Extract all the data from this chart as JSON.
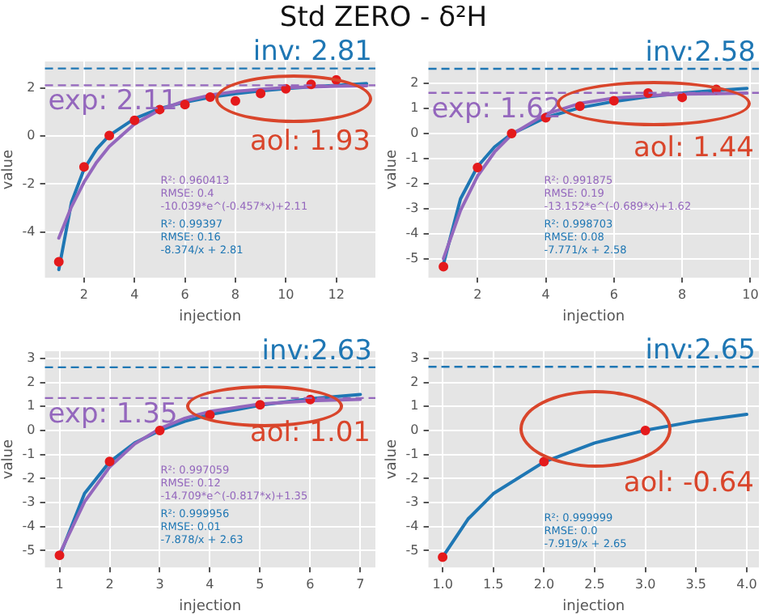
{
  "chart_data": [
    {
      "type": "scatter",
      "title": "Std ZERO - δ²H",
      "xlabel": "injection",
      "ylabel": "value",
      "xlim": [
        0.45,
        13.55
      ],
      "ylim": [
        -5.9,
        3.1
      ],
      "xticks": [
        2,
        4,
        6,
        8,
        10,
        12
      ],
      "yticks": [
        -4,
        -2,
        0,
        2
      ],
      "grid": true,
      "series": [
        {
          "type": "scatter",
          "color": "#e41a1c",
          "x": [
            1,
            2,
            3,
            4,
            5,
            6,
            7,
            8,
            9,
            10,
            11,
            12
          ],
          "values": [
            -5.24,
            -1.29,
            0.02,
            0.65,
            1.1,
            1.31,
            1.62,
            1.46,
            1.77,
            1.96,
            2.15,
            2.33
          ]
        },
        {
          "type": "line",
          "color": "#9467bd",
          "x": [
            1,
            1.5,
            2,
            2.5,
            3,
            4,
            5,
            6,
            7,
            8,
            9,
            10,
            11,
            12,
            13.2
          ],
          "values": [
            -4.25,
            -2.95,
            -1.92,
            -1.09,
            -0.44,
            0.5,
            1.09,
            1.46,
            1.7,
            1.85,
            1.95,
            2.01,
            2.04,
            2.07,
            2.09
          ]
        },
        {
          "type": "line",
          "color": "#1f77b4",
          "x": [
            1,
            1.5,
            2,
            2.5,
            3,
            4,
            5,
            6,
            7,
            8,
            9,
            10,
            11,
            12,
            13.2
          ],
          "values": [
            -5.56,
            -2.77,
            -1.38,
            -0.54,
            0.02,
            0.72,
            1.14,
            1.41,
            1.61,
            1.76,
            1.88,
            1.97,
            2.05,
            2.11,
            2.18
          ]
        }
      ],
      "ref_lines": [
        {
          "axis": "y",
          "value": 2.81,
          "label": "inv: 2.81",
          "color": "#1f77b4",
          "line_style": "dashed"
        },
        {
          "axis": "y",
          "value": 2.11,
          "label": "exp: 2.11",
          "color": "#9467bd",
          "line_style": "dashed"
        }
      ],
      "annotations": [
        "R²: 0.960413\nRMSE: 0.4\n-10.039*e^(-0.457*x)+2.11",
        "R²: 0.99397\nRMSE: 0.16\n-8.374/x + 2.81",
        "aol: 1.93"
      ]
    },
    {
      "type": "scatter",
      "xlabel": "injection",
      "ylabel": "value",
      "xlim": [
        0.56,
        10.25
      ],
      "ylim": [
        -5.74,
        2.87
      ],
      "xticks": [
        2,
        4,
        6,
        8,
        10
      ],
      "yticks": [
        -5,
        -4,
        -3,
        -2,
        -1,
        0,
        1,
        2
      ],
      "grid": true,
      "series": [
        {
          "type": "scatter",
          "color": "#e41a1c",
          "x": [
            1,
            2,
            3,
            4,
            5,
            6,
            7,
            8,
            9
          ],
          "values": [
            -5.3,
            -1.35,
            0.0,
            0.63,
            1.09,
            1.31,
            1.61,
            1.44,
            1.76
          ]
        },
        {
          "type": "line",
          "color": "#9467bd",
          "x": [
            1,
            1.5,
            2,
            2.5,
            3,
            4,
            5,
            6,
            7,
            8,
            9,
            9.9
          ],
          "values": [
            -4.98,
            -3.06,
            -1.69,
            -0.73,
            -0.04,
            0.78,
            1.2,
            1.41,
            1.51,
            1.57,
            1.59,
            1.61
          ]
        },
        {
          "type": "line",
          "color": "#1f77b4",
          "x": [
            1,
            1.5,
            2,
            2.5,
            3,
            4,
            5,
            6,
            7,
            8,
            9,
            9.9
          ],
          "values": [
            -5.19,
            -2.6,
            -1.31,
            -0.53,
            -0.01,
            0.64,
            1.03,
            1.28,
            1.47,
            1.61,
            1.72,
            1.8
          ]
        }
      ],
      "ref_lines": [
        {
          "axis": "y",
          "value": 2.58,
          "label": "inv:2.58",
          "color": "#1f77b4",
          "line_style": "dashed"
        },
        {
          "axis": "y",
          "value": 1.62,
          "label": "exp: 1.62",
          "color": "#9467bd",
          "line_style": "dashed"
        }
      ],
      "annotations": [
        "R²: 0.991875\nRMSE: 0.19\n-13.152*e^(-0.689*x)+1.62",
        "R²: 0.998703\nRMSE: 0.08\n-7.771/x + 2.58",
        "aol: 1.44"
      ]
    },
    {
      "type": "scatter",
      "xlabel": "injection",
      "ylabel": "value",
      "xlim": [
        0.71,
        7.3
      ],
      "ylim": [
        -5.7,
        3.3
      ],
      "xticks": [
        1,
        2,
        3,
        4,
        5,
        6,
        7
      ],
      "yticks": [
        -5,
        -4,
        -3,
        -2,
        -1,
        0,
        1,
        2,
        3
      ],
      "grid": true,
      "series": [
        {
          "type": "scatter",
          "color": "#e41a1c",
          "x": [
            1,
            2,
            3,
            4,
            5,
            6
          ],
          "values": [
            -5.2,
            -1.29,
            0.0,
            0.65,
            1.07,
            1.29
          ]
        },
        {
          "type": "line",
          "color": "#9467bd",
          "x": [
            1,
            1.5,
            2,
            2.5,
            3,
            3.5,
            4,
            5,
            6,
            7
          ],
          "values": [
            -5.15,
            -2.97,
            -1.52,
            -0.56,
            0.08,
            0.51,
            0.79,
            1.1,
            1.24,
            1.3
          ]
        },
        {
          "type": "line",
          "color": "#1f77b4",
          "x": [
            1,
            1.5,
            2,
            2.5,
            3,
            3.5,
            4,
            5,
            6,
            7
          ],
          "values": [
            -5.25,
            -2.62,
            -1.31,
            -0.52,
            0.0,
            0.38,
            0.66,
            1.05,
            1.32,
            1.5
          ]
        }
      ],
      "ref_lines": [
        {
          "axis": "y",
          "value": 2.63,
          "label": "inv:2.63",
          "color": "#1f77b4",
          "line_style": "dashed"
        },
        {
          "axis": "y",
          "value": 1.35,
          "label": "exp: 1.35",
          "color": "#9467bd",
          "line_style": "dashed"
        }
      ],
      "annotations": [
        "R²: 0.997059\nRMSE: 0.12\n-14.709*e^(-0.817*x)+1.35",
        "R²: 0.999956\nRMSE: 0.01\n-7.878/x + 2.63",
        "aol: 1.01"
      ]
    },
    {
      "type": "scatter",
      "xlabel": "injection",
      "ylabel": "value",
      "xlim": [
        0.86,
        4.12
      ],
      "ylim": [
        -5.7,
        3.3
      ],
      "xticks": [
        {
          "value": 1,
          "label": "1.0"
        },
        {
          "value": 1.5,
          "label": "1.5"
        },
        {
          "value": 2,
          "label": "2.0"
        },
        {
          "value": 2.5,
          "label": "2.5"
        },
        {
          "value": 3,
          "label": "3.0"
        },
        {
          "value": 3.5,
          "label": "3.5"
        },
        {
          "value": 4,
          "label": "4.0"
        }
      ],
      "yticks": [
        -5,
        -4,
        -3,
        -2,
        -1,
        0,
        1,
        2,
        3
      ],
      "grid": true,
      "series": [
        {
          "type": "scatter",
          "color": "#e41a1c",
          "x": [
            1,
            2,
            3
          ],
          "values": [
            -5.27,
            -1.3,
            0.0
          ]
        },
        {
          "type": "line",
          "color": "#1f77b4",
          "x": [
            1,
            1.25,
            1.5,
            2,
            2.5,
            3,
            3.5,
            4
          ],
          "values": [
            -5.27,
            -3.69,
            -2.63,
            -1.31,
            -0.52,
            0.01,
            0.39,
            0.67
          ]
        }
      ],
      "ref_lines": [
        {
          "axis": "y",
          "value": 2.65,
          "label": "inv:2.65",
          "color": "#1f77b4",
          "line_style": "dashed"
        }
      ],
      "annotations": [
        "R²: 0.999999\nRMSE: 0.0\n-7.919/x + 2.65",
        "aol: -0.64"
      ]
    }
  ]
}
